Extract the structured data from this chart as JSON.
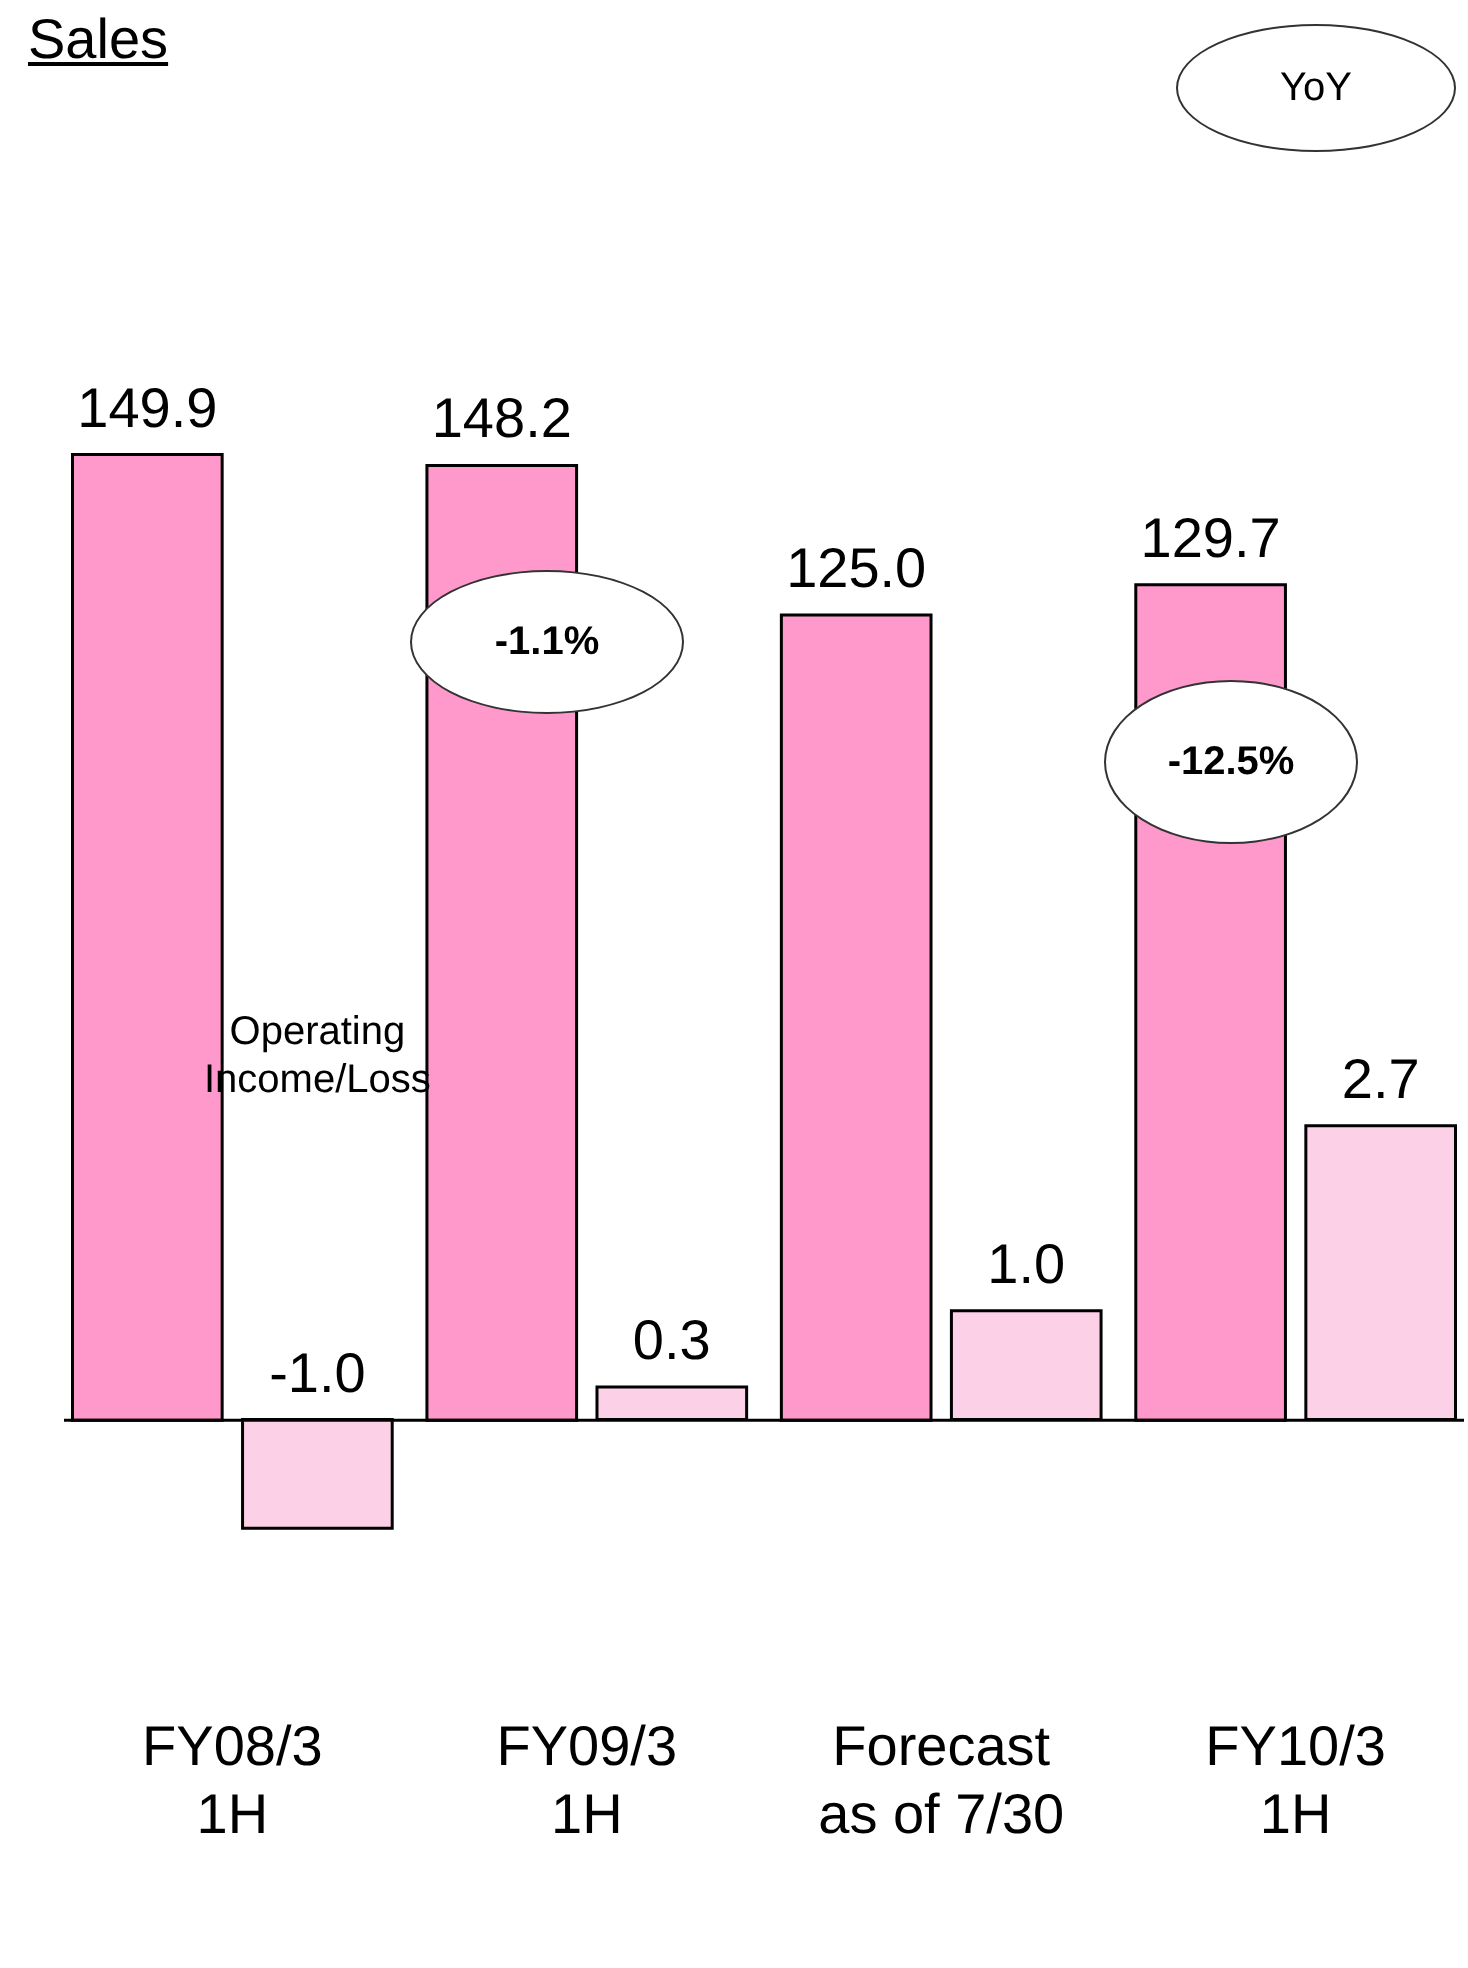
{
  "chart_data": {
    "type": "bar",
    "title": "Sales",
    "categories": [
      "FY08/3\n1H",
      "FY09/3\n1H",
      "Forecast\nas of 7/30",
      "FY10/3\n1H"
    ],
    "series": [
      {
        "color": "#ff99cc",
        "values": [
          149.9,
          148.2,
          125.0,
          129.7
        ],
        "value_labels": [
          "149.9",
          "148.2",
          "125.0",
          "129.7"
        ]
      },
      {
        "name": "Operating Income/Loss",
        "color": "#fcd0e6",
        "axis": "y2",
        "values": [
          -1.0,
          0.3,
          1.0,
          2.7
        ],
        "value_labels": [
          "-1.0",
          "0.3",
          "1.0",
          "2.7"
        ]
      }
    ],
    "annotations": [
      "YoY",
      "-1.1%",
      "-12.5%"
    ]
  }
}
